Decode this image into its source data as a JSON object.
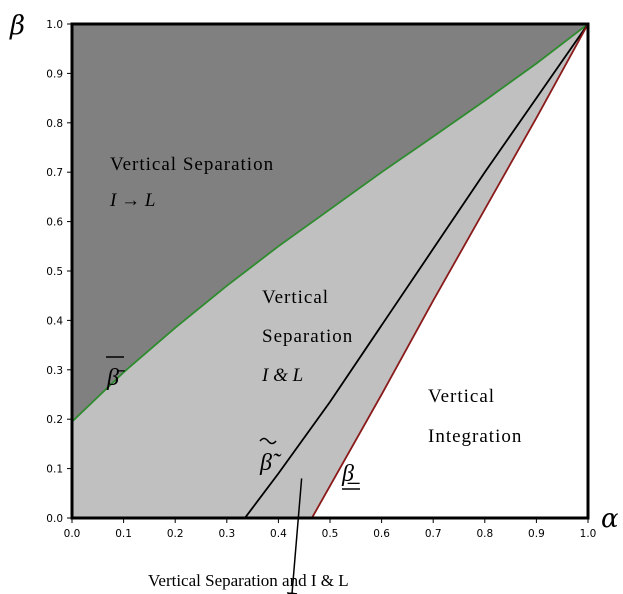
{
  "chart_data": {
    "type": "area",
    "xlabel": "α",
    "ylabel": "β",
    "xlim": [
      0.0,
      1.0
    ],
    "ylim": [
      0.0,
      1.0
    ],
    "x_ticks": [
      "0.0",
      "0.1",
      "0.2",
      "0.3",
      "0.4",
      "0.5",
      "0.6",
      "0.7",
      "0.8",
      "0.9",
      "1.0"
    ],
    "y_ticks": [
      "0.0",
      "0.1",
      "0.2",
      "0.3",
      "0.4",
      "0.5",
      "0.6",
      "0.7",
      "0.8",
      "0.9",
      "1.0"
    ],
    "grid": false,
    "colors": {
      "dark_region": "#808080",
      "light_region": "#c0c0c0",
      "white_region": "#ffffff",
      "beta_bar_curve": "#2e8b2e",
      "beta_tilde_curve": "#000000",
      "beta_under_curve": "#8b1a1a"
    },
    "series": [
      {
        "name": "β̄",
        "label_style": "overline",
        "x": [
          0.0,
          0.1,
          0.2,
          0.3,
          0.4,
          0.5,
          0.6,
          0.7,
          0.8,
          0.9,
          1.0
        ],
        "y": [
          0.195,
          0.295,
          0.385,
          0.47,
          0.55,
          0.625,
          0.7,
          0.772,
          0.845,
          0.92,
          1.0
        ]
      },
      {
        "name": "β̃",
        "label_style": "tilde",
        "x": [
          0.335,
          0.4,
          0.5,
          0.6,
          0.7,
          0.8,
          0.9,
          0.95,
          1.0
        ],
        "y": [
          0.0,
          0.09,
          0.235,
          0.39,
          0.545,
          0.7,
          0.85,
          0.925,
          1.0
        ]
      },
      {
        "name": "β̲",
        "label_style": "underline",
        "x": [
          0.465,
          0.6,
          0.7,
          0.8,
          0.9,
          1.0
        ],
        "y": [
          0.0,
          0.25,
          0.44,
          0.625,
          0.81,
          1.0
        ]
      }
    ],
    "regions": [
      {
        "lines": [
          "Vertical Separation",
          "I → L"
        ]
      },
      {
        "lines": [
          "Vertical",
          "Separation",
          "I & L"
        ]
      },
      {
        "lines": [
          "Vertical",
          "Integration"
        ]
      }
    ],
    "annotation": {
      "text": "Vertical Separation and I & L",
      "arrow_from": [
        0.445,
        0.08
      ],
      "arrow_to": [
        0.425,
        -0.17
      ]
    }
  }
}
